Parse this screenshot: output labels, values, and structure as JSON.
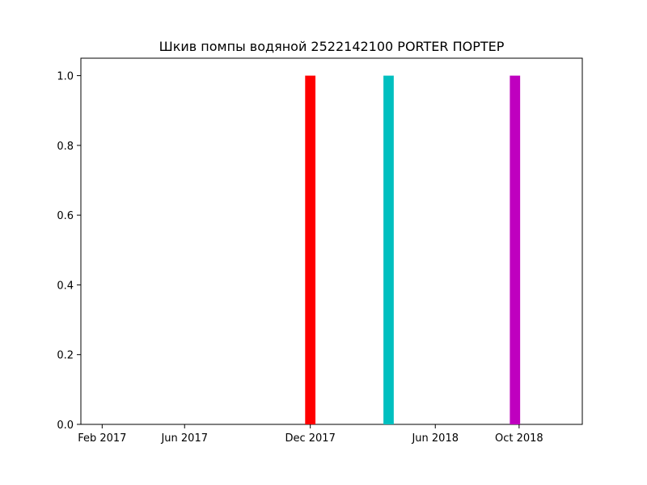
{
  "chart_data": {
    "type": "bar",
    "title": "Шкив помпы водяной 2522142100 PORTER ПОРТЕР",
    "xlabel": "",
    "ylabel": "",
    "x_axis_type": "date",
    "xlim": [
      "2017-01-01",
      "2019-01-01"
    ],
    "ylim": [
      0,
      1.05
    ],
    "grid": false,
    "x_ticks": [
      {
        "date": "2017-02-01",
        "label": "Feb 2017"
      },
      {
        "date": "2017-06-01",
        "label": "Jun 2017"
      },
      {
        "date": "2017-12-01",
        "label": "Dec 2017"
      },
      {
        "date": "2018-06-01",
        "label": "Jun 2018"
      },
      {
        "date": "2018-10-01",
        "label": "Oct 2018"
      }
    ],
    "y_ticks": [
      0.0,
      0.2,
      0.4,
      0.6,
      0.8,
      1.0
    ],
    "y_tick_labels": [
      "0.0",
      "0.2",
      "0.4",
      "0.6",
      "0.8",
      "1.0"
    ],
    "bars": [
      {
        "date": "2017-12-01",
        "value": 1.0,
        "color": "#ff0000"
      },
      {
        "date": "2018-03-25",
        "value": 1.0,
        "color": "#00bfbf"
      },
      {
        "date": "2018-09-25",
        "value": 1.0,
        "color": "#bf00bf"
      }
    ]
  }
}
